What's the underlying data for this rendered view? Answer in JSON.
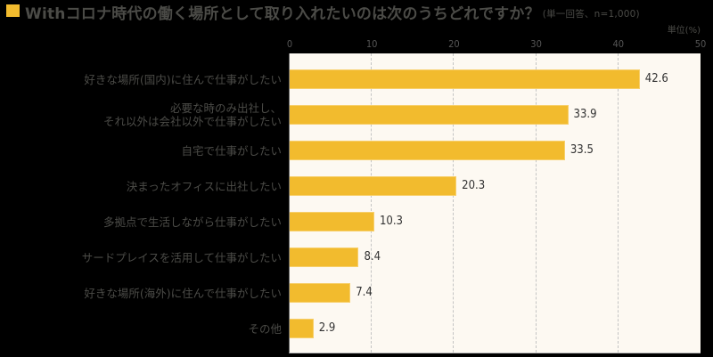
{
  "header": {
    "title": "Withコロナ時代の働く場所として取り入れたいのは次のうちどれですか？",
    "subtitle": "(単一回答、n=1,000)",
    "unit": "単位(%)"
  },
  "colors": {
    "bar": "#f2bb2e",
    "plot_background": "#fdf9f2",
    "text": "#4b4b47"
  },
  "chart_data": {
    "type": "bar",
    "orientation": "horizontal",
    "title": "Withコロナ時代の働く場所として取り入れたいのは次のうちどれですか？ (単一回答、n=1,000)",
    "xlabel": "",
    "ylabel": "",
    "unit": "単位(%)",
    "xlim": [
      0,
      50
    ],
    "xticks": [
      "0",
      "10",
      "20",
      "30",
      "40",
      "50"
    ],
    "grid": true,
    "categories": [
      "好きな場所(国内)に住んで仕事がしたい",
      "必要な時のみ出社し、\nそれ以外は会社以外で仕事がしたい",
      "自宅で仕事がしたい",
      "決まったオフィスに出社したい",
      "多拠点で生活しながら仕事がしたい",
      "サードプレイスを活用して仕事がしたい",
      "好きな場所(海外)に住んで仕事がしたい",
      "その他"
    ],
    "values": [
      42.6,
      33.9,
      33.5,
      20.3,
      10.3,
      8.4,
      7.4,
      2.9
    ],
    "value_labels": [
      "42.6",
      "33.9",
      "33.5",
      "20.3",
      "10.3",
      "8.4",
      "7.4",
      "2.9"
    ]
  }
}
